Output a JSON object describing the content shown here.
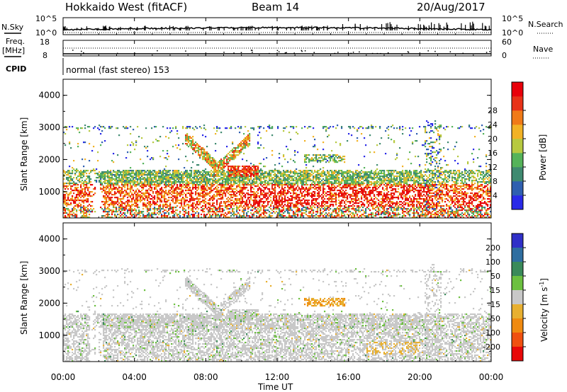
{
  "header": {
    "station": "Hokkaido West (fitACF)",
    "beam": "Beam 14",
    "date": "20/Aug/2017"
  },
  "strip": {
    "nsky_label": "N.Sky",
    "nsearch_label": "N.Search",
    "noise_top": "10^5",
    "noise_bottom": "10^0",
    "freq_label": "Freq.",
    "freq_unit": "[MHz]",
    "freq_top": "18",
    "freq_bottom": "8",
    "nave_label": "Nave",
    "nave_top": "60",
    "nave_bottom": "0",
    "cpid_label": "CPID",
    "cpid_text": "normal (fast stereo) 153"
  },
  "chart_data": [
    {
      "type": "heatmap",
      "name": "power",
      "ylabel": "Slant Range [km]",
      "ylim": [
        180,
        4500
      ],
      "y_ticks": [
        "1000",
        "2000",
        "3000",
        "4000"
      ],
      "colorbar_label": "Power [dB]",
      "colorbar_ticks": [
        "4",
        "8",
        "12",
        "16",
        "20",
        "24",
        "28"
      ],
      "colors": [
        "#2a2ae8",
        "#2f5fb0",
        "#3f8a70",
        "#55b35a",
        "#b7c940",
        "#f2b225",
        "#f07a18",
        "#e83218",
        "#e8000a"
      ],
      "levels": [
        0,
        4,
        8,
        12,
        16,
        20,
        24,
        28,
        32
      ]
    },
    {
      "type": "heatmap",
      "name": "velocity",
      "ylabel": "Slant Range [km]",
      "ylim": [
        180,
        4500
      ],
      "y_ticks": [
        "1000",
        "2000",
        "3000",
        "4000"
      ],
      "colorbar_label": "Velocity [m s^-1]",
      "colorbar_ticks": [
        "200",
        "100",
        "50",
        "15",
        "-15",
        "-50",
        "-100",
        "-200"
      ],
      "colors": [
        "#3030c8",
        "#2f6ea0",
        "#3a8a5a",
        "#6cc040",
        "#c8c8c8",
        "#e8b030",
        "#f08a10",
        "#f05010",
        "#e80808"
      ]
    }
  ],
  "x_axis": {
    "label": "Time UT",
    "ticks": [
      "00:00",
      "04:00",
      "08:00",
      "12:00",
      "16:00",
      "20:00",
      "00:00"
    ]
  }
}
